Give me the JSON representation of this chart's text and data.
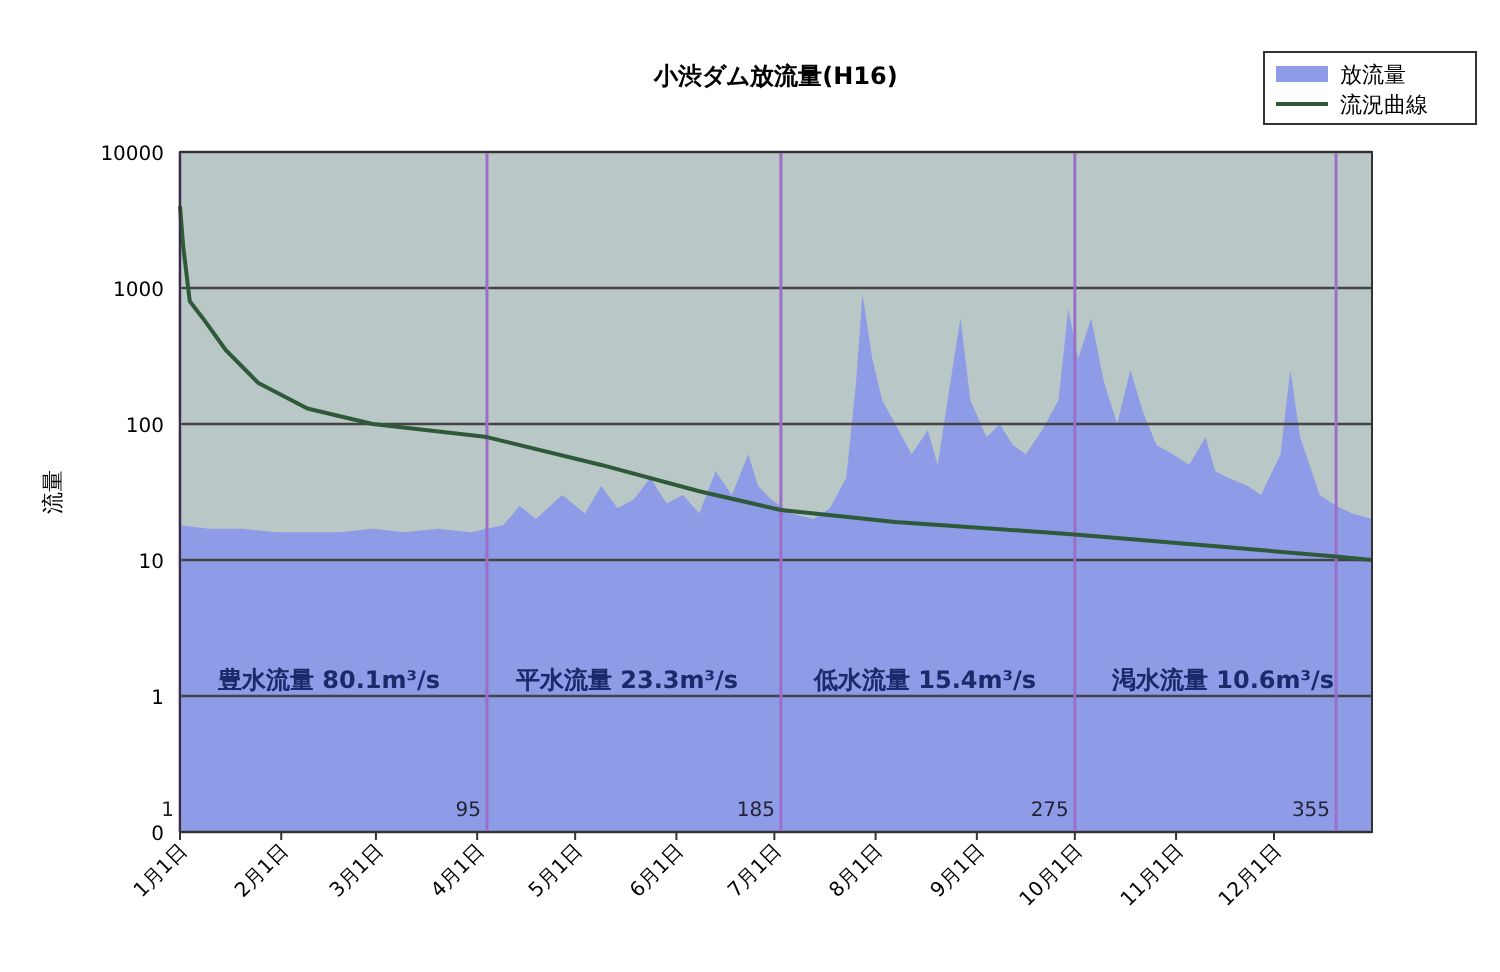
{
  "chart_data": {
    "type": "area",
    "title": "小渋ダム放流量(H16)",
    "ylabel": "流量",
    "log": "y",
    "grid": "y",
    "legend": "top right",
    "xlim": [
      "--01-01",
      "--12-31"
    ],
    "ylim": [
      0.1,
      10000
    ],
    "yticks": [
      {
        "value": 0.1,
        "label": "0"
      },
      1,
      10,
      100,
      1000,
      10000
    ],
    "xticks": [
      {
        "value": "--01-01",
        "label": "1月1日"
      },
      {
        "value": "--02-01",
        "label": "2月1日"
      },
      {
        "value": "--03-01",
        "label": "3月1日"
      },
      {
        "value": "--04-01",
        "label": "4月1日"
      },
      {
        "value": "--05-01",
        "label": "5月1日"
      },
      {
        "value": "--06-01",
        "label": "6月1日"
      },
      {
        "value": "--07-01",
        "label": "7月1日"
      },
      {
        "value": "--08-01",
        "label": "8月1日"
      },
      {
        "value": "--09-01",
        "label": "9月1日"
      },
      {
        "value": "--10-01",
        "label": "10月1日"
      },
      {
        "value": "--11-01",
        "label": "11月1日"
      },
      {
        "value": "--12-01",
        "label": "12月1日"
      }
    ],
    "series": [
      {
        "name": "放流量",
        "color": "#8e9be6",
        "x": [
          "--01-01",
          "--01-10",
          "--01-20",
          "--01-30",
          "--02-09",
          "--02-19",
          "--02-29",
          "--03-10",
          "--03-20",
          "--03-30",
          "--04-09",
          "--04-14",
          "--04-19",
          "--04-27",
          "--05-04",
          "--05-09",
          "--05-14",
          "--05-19",
          "--05-24",
          "--05-29",
          "--06-03",
          "--06-08",
          "--06-13",
          "--06-18",
          "--06-23",
          "--06-26",
          "--06-30",
          "--07-06",
          "--07-13",
          "--07-18",
          "--07-23",
          "--07-26",
          "--07-28",
          "--07-31",
          "--08-03",
          "--08-07",
          "--08-12",
          "--08-17",
          "--08-20",
          "--08-25",
          "--08-27",
          "--08-30",
          "--09-04",
          "--09-08",
          "--09-12",
          "--09-16",
          "--09-21",
          "--09-26",
          "--09-29",
          "--10-02",
          "--10-06",
          "--10-10",
          "--10-14",
          "--10-18",
          "--10-22",
          "--10-26",
          "--10-31",
          "--11-05",
          "--11-10",
          "--11-13",
          "--11-17",
          "--11-23",
          "--11-27",
          "--12-03",
          "--12-06",
          "--12-09",
          "--12-15",
          "--12-20",
          "--12-25",
          "--12-31"
        ],
        "values": [
          18,
          17,
          17,
          16,
          16,
          16,
          17,
          16,
          17,
          16,
          18,
          25,
          20,
          30,
          22,
          35,
          24,
          28,
          40,
          26,
          30,
          22,
          45,
          30,
          60,
          35,
          28,
          22,
          20,
          24,
          40,
          200,
          900,
          300,
          150,
          100,
          60,
          90,
          50,
          300,
          600,
          150,
          80,
          100,
          70,
          60,
          90,
          150,
          700,
          300,
          600,
          200,
          100,
          250,
          120,
          70,
          60,
          50,
          80,
          45,
          40,
          35,
          30,
          60,
          250,
          80,
          30,
          25,
          22,
          20
        ]
      },
      {
        "name": "流況曲線",
        "type": "line",
        "color": "#2f5a3a",
        "x": [
          "--01-01",
          "--01-02",
          "--01-04",
          "--01-08",
          "--01-15",
          "--01-25",
          "--02-09",
          "--02-29",
          "--04-04",
          "--05-09",
          "--06-08",
          "--07-03",
          "--08-07",
          "--09-06",
          "--10-01",
          "--11-15",
          "--12-20",
          "--12-31"
        ],
        "values": [
          4000,
          2000,
          800,
          600,
          350,
          200,
          130,
          100,
          80.1,
          50,
          32,
          23.3,
          19,
          17,
          15.4,
          12.5,
          10.6,
          10
        ]
      }
    ],
    "ref_lines": [
      {
        "axis": "x",
        "value": "--01-01",
        "label": "1",
        "color": "#9b6fc9"
      },
      {
        "axis": "x",
        "value": "--04-04",
        "label": "95",
        "color": "#9b6fc9"
      },
      {
        "axis": "x",
        "value": "--07-03",
        "label": "185",
        "color": "#9b6fc9"
      },
      {
        "axis": "x",
        "value": "--10-01",
        "label": "275",
        "color": "#9b6fc9"
      },
      {
        "axis": "x",
        "value": "--12-20",
        "label": "355",
        "color": "#9b6fc9"
      }
    ],
    "annotations": [
      "豊水流量 80.1m³/s",
      "平水流量 23.3m³/s",
      "低水流量 15.4m³/s",
      "渇水流量 10.6m³/s"
    ]
  }
}
